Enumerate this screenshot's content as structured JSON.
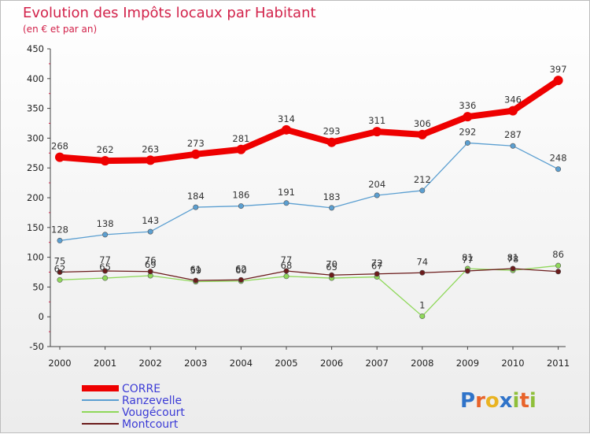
{
  "chart_data": {
    "type": "line",
    "title": "Evolution des Impôts locaux par Habitant",
    "subtitle": "(en € et par an)",
    "x": [
      "2000",
      "2001",
      "2002",
      "2003",
      "2004",
      "2005",
      "2006",
      "2007",
      "2008",
      "2009",
      "2010",
      "2011"
    ],
    "yticks": [
      "450",
      "400",
      "350",
      "300",
      "250",
      "200",
      "150",
      "100",
      "50",
      "0",
      "-50"
    ],
    "ylim": [
      -50,
      450
    ],
    "series": [
      {
        "name": "CORRE",
        "color": "#ee0000",
        "values": [
          268,
          262,
          263,
          273,
          281,
          314,
          293,
          311,
          306,
          336,
          346,
          397
        ],
        "labels": [
          "268",
          "262",
          "263",
          "273",
          "281",
          "314",
          "293",
          "311",
          "306",
          "336",
          "346",
          "397"
        ]
      },
      {
        "name": "Ranzevelle",
        "color": "#5b9fd1",
        "values": [
          128,
          138,
          143,
          184,
          186,
          191,
          183,
          204,
          212,
          292,
          287,
          248
        ],
        "labels": [
          "128",
          "138",
          "143",
          "184",
          "186",
          "191",
          "183",
          "204",
          "212",
          "292",
          "287",
          "248"
        ]
      },
      {
        "name": "Vougécourt",
        "color": "#8fd85a",
        "values": [
          62,
          65,
          69,
          59,
          60,
          68,
          65,
          67,
          1,
          81,
          78,
          86
        ],
        "labels": [
          "62",
          "65",
          "69",
          "59",
          "60",
          "68",
          "65",
          "67",
          "1",
          "81",
          "78",
          "86"
        ]
      },
      {
        "name": "Montcourt",
        "color": "#6b1b1b",
        "values": [
          75,
          77,
          76,
          61,
          62,
          77,
          70,
          72,
          74,
          77,
          81,
          76
        ],
        "labels": [
          "75",
          "77",
          "76",
          "61",
          "62",
          "77",
          "70",
          "72",
          "74",
          "77",
          "81",
          ""
        ]
      }
    ],
    "grid": false,
    "legend": "bottom-left"
  },
  "brand": {
    "letters": [
      "P",
      "r",
      "o",
      "x",
      "i",
      "t",
      "i"
    ],
    "colors": [
      "#2f73c9",
      "#e8632a",
      "#e9b321",
      "#2f73c9",
      "#8fbf3a",
      "#e8632a",
      "#8fbf3a"
    ]
  }
}
